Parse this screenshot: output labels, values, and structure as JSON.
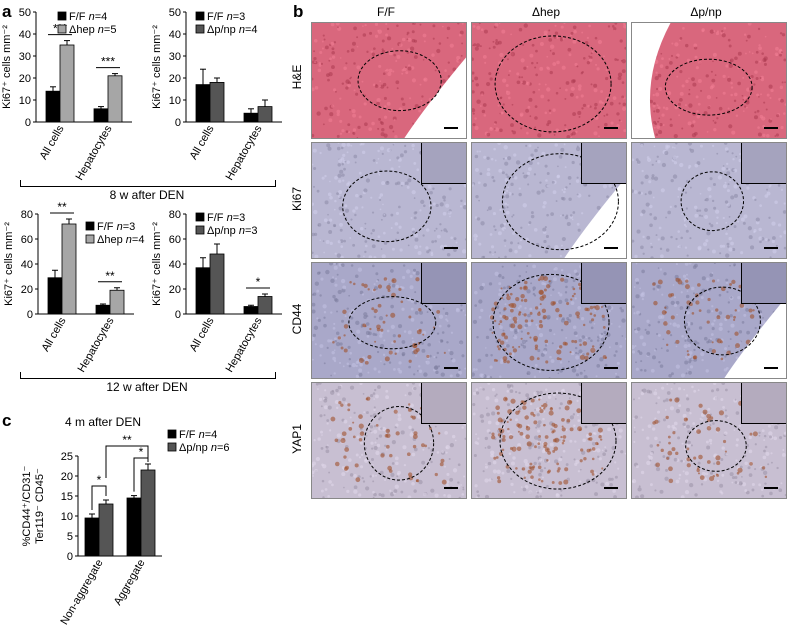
{
  "panel_letters": {
    "a": "a",
    "b": "b",
    "c": "c"
  },
  "section_labels": {
    "a_top": "8 w after DEN",
    "a_bottom": "12 w after DEN",
    "c_title": "4 m after DEN"
  },
  "chart_data": [
    {
      "id": "a1",
      "type": "bar",
      "categories": [
        "All cells",
        "Hepatocytes"
      ],
      "ylabel": "Ki67⁺ cells mm⁻²",
      "ylim": [
        0,
        50
      ],
      "yticks": [
        0,
        10,
        20,
        30,
        40,
        50
      ],
      "series": [
        {
          "name": "F/F n=4",
          "name_plain": "F/F",
          "n_text": "n=4",
          "color": "#000000",
          "values": [
            14,
            6
          ],
          "errors": [
            2,
            1
          ]
        },
        {
          "name": "Δhep n=5",
          "name_plain": "Δhep",
          "n_text": "n=5",
          "color": "#a6a6a6",
          "values": [
            35,
            21
          ],
          "errors": [
            2,
            1
          ]
        }
      ],
      "significance": [
        {
          "category": "All cells",
          "label": "***"
        },
        {
          "category": "Hepatocytes",
          "label": "***"
        }
      ]
    },
    {
      "id": "a2",
      "type": "bar",
      "categories": [
        "All cells",
        "Hepatocytes"
      ],
      "ylabel": "Ki67⁺ cells mm⁻²",
      "ylim": [
        0,
        50
      ],
      "yticks": [
        0,
        10,
        20,
        30,
        40,
        50
      ],
      "series": [
        {
          "name": "F/F n=3",
          "name_plain": "F/F",
          "n_text": "n=3",
          "color": "#000000",
          "values": [
            17,
            4
          ],
          "errors": [
            7,
            2
          ]
        },
        {
          "name": "Δp/np n=4",
          "name_plain": "Δp/np",
          "n_text": "n=4",
          "color": "#555555",
          "values": [
            18,
            7
          ],
          "errors": [
            2,
            3
          ]
        }
      ],
      "significance": []
    },
    {
      "id": "a3",
      "type": "bar",
      "categories": [
        "All cells",
        "Hepatocytes"
      ],
      "ylabel": "Ki67⁺ cells mm⁻²",
      "ylim": [
        0,
        80
      ],
      "yticks": [
        0,
        20,
        40,
        60,
        80
      ],
      "series": [
        {
          "name": "F/F n=3",
          "name_plain": "F/F",
          "n_text": "n=3",
          "color": "#000000",
          "values": [
            29,
            7
          ],
          "errors": [
            6,
            1
          ]
        },
        {
          "name": "Δhep n=4",
          "name_plain": "Δhep",
          "n_text": "n=4",
          "color": "#a6a6a6",
          "values": [
            72,
            19
          ],
          "errors": [
            4,
            2
          ]
        }
      ],
      "significance": [
        {
          "category": "All cells",
          "label": "**"
        },
        {
          "category": "Hepatocytes",
          "label": "**"
        }
      ]
    },
    {
      "id": "a4",
      "type": "bar",
      "categories": [
        "All cells",
        "Hepatocytes"
      ],
      "ylabel": "Ki67⁺ cells mm⁻²",
      "ylim": [
        0,
        80
      ],
      "yticks": [
        0,
        20,
        40,
        60,
        80
      ],
      "series": [
        {
          "name": "F/F n=3",
          "name_plain": "F/F",
          "n_text": "n=3",
          "color": "#000000",
          "values": [
            37,
            6
          ],
          "errors": [
            8,
            1
          ]
        },
        {
          "name": "Δp/np n=3",
          "name_plain": "Δp/np",
          "n_text": "n=3",
          "color": "#555555",
          "values": [
            48,
            14
          ],
          "errors": [
            8,
            2
          ]
        }
      ],
      "significance": [
        {
          "category": "Hepatocytes",
          "label": "*"
        }
      ]
    },
    {
      "id": "c",
      "type": "bar",
      "categories": [
        "Non-aggregate",
        "Aggregate"
      ],
      "ylabel_lines": [
        "%CD44⁺/CD31⁻",
        "Ter119⁻ CD45⁻"
      ],
      "ylim": [
        0,
        25
      ],
      "yticks": [
        0,
        5,
        10,
        15,
        20,
        25
      ],
      "series": [
        {
          "name": "F/F n=4",
          "name_plain": "F/F",
          "n_text": "n=4",
          "color": "#000000",
          "values": [
            9.5,
            14.5
          ],
          "errors": [
            1,
            0.6
          ]
        },
        {
          "name": "Δp/np n=6",
          "name_plain": "Δp/np",
          "n_text": "n=6",
          "color": "#555555",
          "values": [
            13,
            21.5
          ],
          "errors": [
            1,
            1.5
          ]
        }
      ],
      "significance": [
        {
          "label": "*"
        },
        {
          "label": "**"
        },
        {
          "label": "*"
        }
      ]
    }
  ],
  "micrographs": {
    "columns": [
      "F/F",
      "Δhep",
      "Δp/np"
    ],
    "rows": [
      "H&E",
      "Ki67",
      "CD44",
      "YAP1"
    ],
    "stain_colors": {
      "H&E": "#d9677d",
      "Ki67": "#b9b7d2",
      "CD44": "#a9a8c9",
      "YAP1": "#c8bfd2"
    }
  }
}
